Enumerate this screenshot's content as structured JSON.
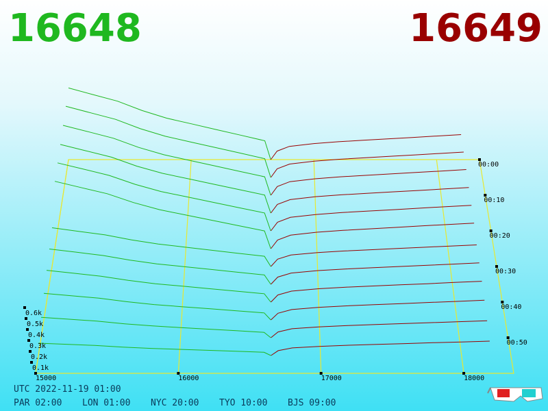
{
  "chart_data": {
    "type": "depth3d",
    "best_bid": 16648,
    "best_ask": 16649,
    "bid_color": "#1fb81f",
    "ask_color": "#990000",
    "floor_color": "#e8e830",
    "xlim": [
      15000,
      18350
    ],
    "xticks": [
      15000,
      16000,
      17000,
      18000
    ],
    "ylim": [
      0,
      1000
    ],
    "yticks": [
      {
        "value": 100,
        "label": "0.1k"
      },
      {
        "value": 200,
        "label": "0.2k"
      },
      {
        "value": 300,
        "label": "0.3k"
      },
      {
        "value": 400,
        "label": "0.4k"
      },
      {
        "value": 500,
        "label": "0.5k"
      },
      {
        "value": 600,
        "label": "0.6k"
      }
    ],
    "zlim": [
      0,
      60
    ],
    "zticks": [
      {
        "value": 0,
        "label": "00:00"
      },
      {
        "value": 10,
        "label": "00:10"
      },
      {
        "value": 20,
        "label": "00:20"
      },
      {
        "value": 30,
        "label": "00:30"
      },
      {
        "value": 40,
        "label": "00:40"
      },
      {
        "value": 50,
        "label": "00:50"
      }
    ],
    "bid_prices": [
      15000,
      15200,
      15400,
      15600,
      15800,
      16000,
      16200,
      16400,
      16600,
      16648
    ],
    "ask_prices": [
      16649,
      16700,
      16800,
      17000,
      17200,
      17400,
      17600,
      17800,
      18000,
      18200
    ],
    "snapshots": [
      {
        "t": 0,
        "bids": [
          760,
          690,
          620,
          520,
          440,
          380,
          320,
          260,
          200,
          0
        ],
        "asks": [
          0,
          90,
          140,
          170,
          190,
          205,
          220,
          235,
          250,
          265
        ]
      },
      {
        "t": 5,
        "bids": [
          745,
          676,
          608,
          510,
          431,
          372,
          314,
          255,
          196,
          0
        ],
        "asks": [
          0,
          90,
          140,
          170,
          190,
          205,
          220,
          235,
          250,
          265
        ]
      },
      {
        "t": 10,
        "bids": [
          722,
          656,
          589,
          494,
          418,
          361,
          304,
          247,
          190,
          0
        ],
        "asks": [
          0,
          90,
          140,
          170,
          190,
          205,
          220,
          235,
          250,
          265
        ]
      },
      {
        "t": 15,
        "bids": [
          699,
          635,
          570,
          478,
          405,
          350,
          294,
          239,
          184,
          0
        ],
        "asks": [
          0,
          88,
          137,
          167,
          186,
          201,
          216,
          230,
          245,
          260
        ]
      },
      {
        "t": 20,
        "bids": [
          684,
          621,
          558,
          468,
          396,
          342,
          288,
          234,
          180,
          0
        ],
        "asks": [
          0,
          87,
          136,
          165,
          184,
          199,
          213,
          228,
          243,
          257
        ]
      },
      {
        "t": 25,
        "bids": [
          669,
          607,
          546,
          458,
          387,
          334,
          282,
          229,
          176,
          0
        ],
        "asks": [
          0,
          86,
          134,
          163,
          182,
          197,
          211,
          226,
          240,
          254
        ]
      },
      {
        "t": 30,
        "bids": [
          380,
          345,
          310,
          260,
          220,
          190,
          160,
          130,
          100,
          0
        ],
        "asks": [
          0,
          72,
          112,
          136,
          152,
          164,
          176,
          188,
          200,
          212
        ]
      },
      {
        "t": 35,
        "bids": [
          342,
          311,
          279,
          234,
          198,
          171,
          144,
          117,
          90,
          0
        ],
        "asks": [
          0,
          70,
          109,
          133,
          148,
          160,
          172,
          183,
          195,
          207
        ]
      },
      {
        "t": 40,
        "bids": [
          304,
          276,
          248,
          208,
          176,
          152,
          128,
          104,
          80,
          0
        ],
        "asks": [
          0,
          68,
          105,
          128,
          143,
          154,
          165,
          176,
          188,
          199
        ]
      },
      {
        "t": 45,
        "bids": [
          251,
          228,
          205,
          172,
          145,
          125,
          106,
          86,
          66,
          0
        ],
        "asks": [
          0,
          63,
          98,
          119,
          133,
          144,
          154,
          165,
          175,
          186
        ]
      },
      {
        "t": 50,
        "bids": [
          190,
          173,
          155,
          130,
          110,
          95,
          80,
          65,
          50,
          0
        ],
        "asks": [
          0,
          54,
          84,
          102,
          114,
          123,
          132,
          141,
          150,
          159
        ]
      },
      {
        "t": 55,
        "bids": [
          114,
          104,
          93,
          78,
          66,
          57,
          48,
          39,
          30,
          0
        ],
        "asks": [
          0,
          45,
          70,
          85,
          95,
          103,
          110,
          118,
          125,
          133
        ]
      }
    ],
    "footer": {
      "utc": "UTC 2022-11-19 01:00",
      "clocks": [
        "PAR 02:00",
        "LON 01:00",
        "NYC 20:00",
        "TYO 10:00",
        "BJS 09:00"
      ]
    }
  }
}
